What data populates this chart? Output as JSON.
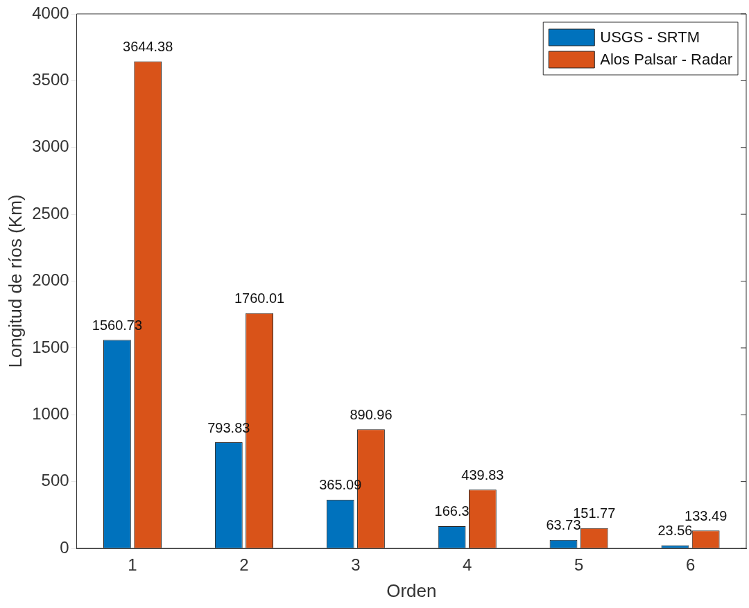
{
  "chart_data": {
    "type": "bar",
    "xlabel": "Orden",
    "ylabel": "Longitud de ríos (Km)",
    "categories": [
      "1",
      "2",
      "3",
      "4",
      "5",
      "6"
    ],
    "series": [
      {
        "name": "USGS - SRTM",
        "color": "#0072bd",
        "values": [
          1560.73,
          793.83,
          365.09,
          166.3,
          63.73,
          23.56
        ]
      },
      {
        "name": "Alos Palsar - Radar",
        "color": "#d95319",
        "values": [
          3644.38,
          1760.01,
          890.96,
          439.83,
          151.77,
          133.49
        ]
      }
    ],
    "ylim": [
      0,
      4000
    ],
    "yticks": [
      0,
      500,
      1000,
      1500,
      2000,
      2500,
      3000,
      3500,
      4000
    ],
    "data_labels": true,
    "legend": "top right"
  }
}
